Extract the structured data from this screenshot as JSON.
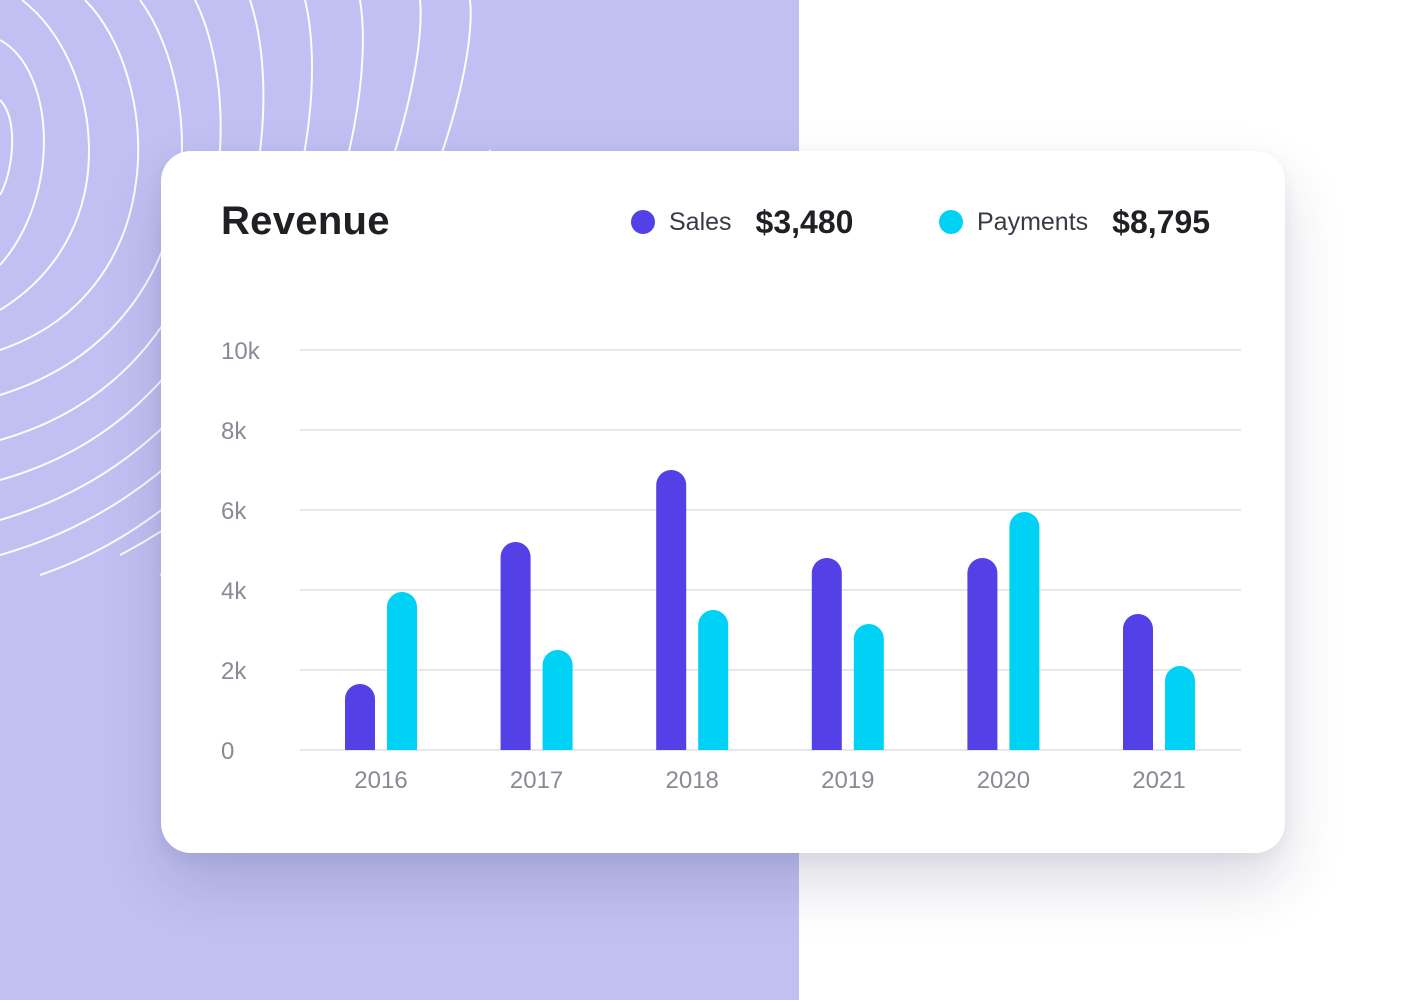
{
  "colors": {
    "background_panel": "#c0c0f2",
    "sales": "#5340e6",
    "payments": "#00d2f5",
    "grid": "#e6e6ec"
  },
  "card": {
    "title": "Revenue",
    "legend": [
      {
        "label": "Sales",
        "value": "$3,480"
      },
      {
        "label": "Payments",
        "value": "$8,795"
      }
    ]
  },
  "chart_data": {
    "type": "bar",
    "title": "Revenue",
    "xlabel": "",
    "ylabel": "",
    "ylim": [
      0,
      10000
    ],
    "yticks": [
      {
        "value": 0,
        "label": "0"
      },
      {
        "value": 2000,
        "label": "2k"
      },
      {
        "value": 4000,
        "label": "4k"
      },
      {
        "value": 6000,
        "label": "6k"
      },
      {
        "value": 8000,
        "label": "8k"
      },
      {
        "value": 10000,
        "label": "10k"
      }
    ],
    "grid": true,
    "legend": "top-right",
    "categories": [
      "2016",
      "2017",
      "2018",
      "2019",
      "2020",
      "2021"
    ],
    "series": [
      {
        "name": "Sales",
        "values": [
          1650,
          5200,
          7000,
          4800,
          4800,
          3400
        ]
      },
      {
        "name": "Payments",
        "values": [
          3950,
          2500,
          3500,
          3150,
          5950,
          2100
        ]
      }
    ]
  }
}
